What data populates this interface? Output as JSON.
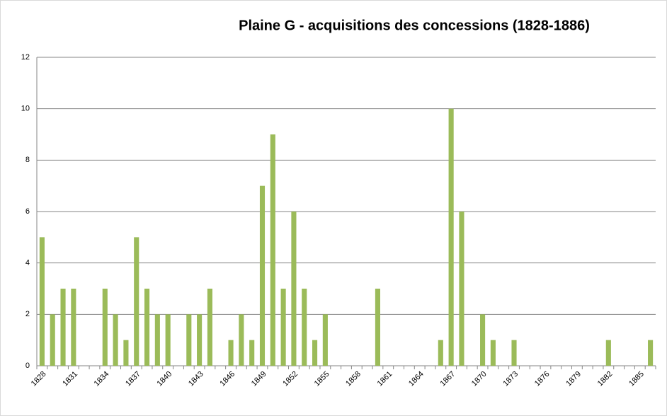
{
  "chart_data": {
    "type": "bar",
    "title": "Plaine G - acquisitions des concessions (1828-1886)",
    "categories": [
      "1828",
      null,
      null,
      "1831",
      null,
      null,
      "1834",
      null,
      null,
      "1837",
      null,
      null,
      "1840",
      null,
      null,
      "1843",
      null,
      null,
      "1846",
      null,
      null,
      "1849",
      null,
      null,
      "1852",
      null,
      null,
      "1855",
      null,
      null,
      "1858",
      null,
      null,
      "1861",
      null,
      null,
      "1864",
      null,
      null,
      "1867",
      null,
      null,
      "1870",
      null,
      null,
      "1873",
      null,
      null,
      "1876",
      null,
      null,
      "1879",
      null,
      null,
      "1882",
      null,
      null,
      "1885",
      null
    ],
    "values": [
      5,
      2,
      3,
      3,
      null,
      null,
      3,
      2,
      1,
      5,
      3,
      2,
      2,
      null,
      2,
      2,
      3,
      null,
      1,
      2,
      1,
      7,
      9,
      3,
      6,
      3,
      1,
      2,
      null,
      null,
      null,
      null,
      3,
      null,
      null,
      null,
      null,
      null,
      1,
      10,
      6,
      null,
      2,
      1,
      null,
      1,
      null,
      null,
      null,
      null,
      null,
      null,
      null,
      null,
      1,
      null,
      null,
      null,
      1
    ],
    "color": "#9bbb59",
    "ylim": [
      0,
      12
    ],
    "yticks": [
      0,
      2,
      4,
      6,
      8,
      10,
      12
    ],
    "grid": true
  }
}
